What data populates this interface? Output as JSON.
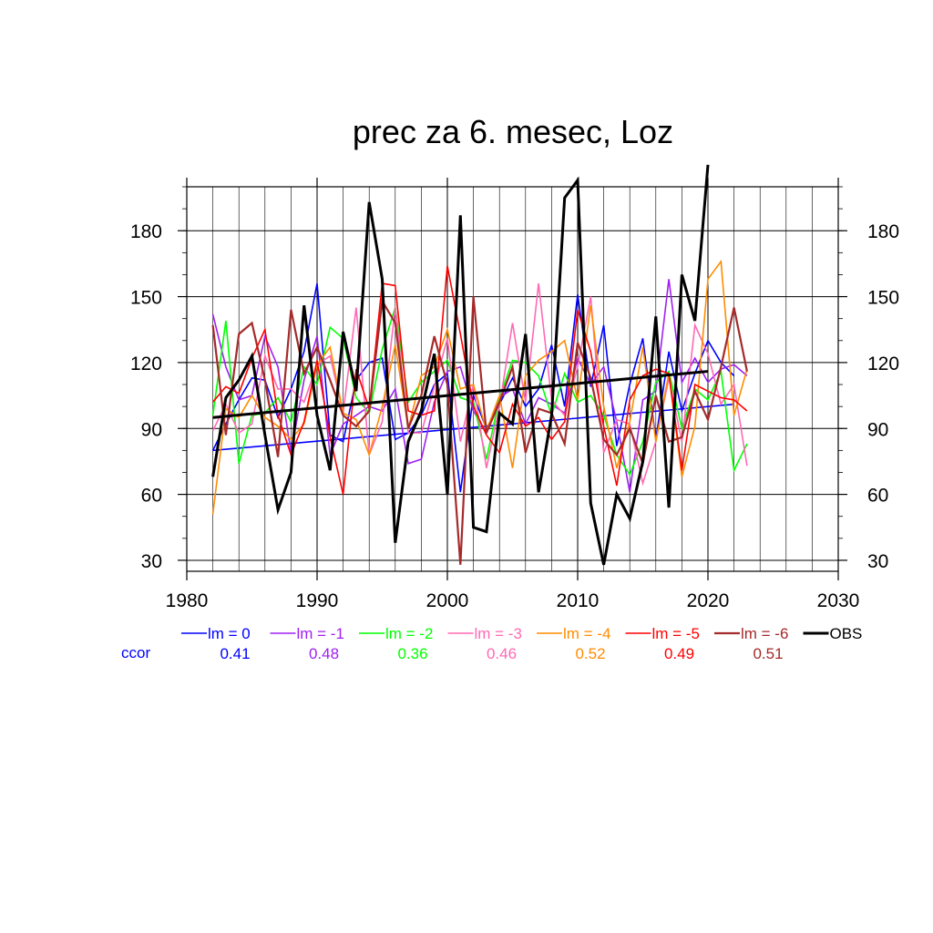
{
  "chart_data": {
    "type": "line",
    "title": "prec za 6. mesec, Loz",
    "xlabel": "",
    "ylabel": "",
    "xlim": [
      1980,
      2030
    ],
    "ylim": [
      25,
      200
    ],
    "x_ticks": [
      1980,
      1990,
      2000,
      2010,
      2020,
      2030
    ],
    "y_ticks": [
      30,
      60,
      90,
      120,
      150,
      180
    ],
    "grid": true,
    "legend_position": "bottom",
    "ccor_label": "ccor",
    "series": [
      {
        "name": "lm = 0",
        "color": "#0000ff",
        "width": 1.6,
        "ccor": "0.41",
        "x_start": 1982,
        "values": [
          80,
          92,
          103,
          113,
          112,
          95,
          108,
          125,
          156,
          87,
          84,
          112,
          120,
          122,
          85,
          88,
          96,
          110,
          115,
          61,
          105,
          90,
          101,
          113,
          100,
          108,
          128,
          100,
          151,
          109,
          137,
          82,
          110,
          131,
          85,
          125,
          98,
          115,
          130,
          120,
          114
        ],
        "trend": [
          80,
          101
        ]
      },
      {
        "name": "lm = -1",
        "color": "#a020f0",
        "width": 1.6,
        "ccor": "0.48",
        "x_start": 1982,
        "values": [
          142,
          118,
          103,
          105,
          132,
          118,
          79,
          112,
          132,
          78,
          92,
          96,
          100,
          98,
          108,
          74,
          76,
          102,
          116,
          118,
          98,
          88,
          104,
          108,
          92,
          104,
          101,
          97,
          122,
          110,
          118,
          93,
          61,
          103,
          107,
          158,
          111,
          122,
          111,
          117,
          119,
          114
        ]
      },
      {
        "name": "lm = -2",
        "color": "#00ff00",
        "width": 1.6,
        "ccor": "0.36",
        "x_start": 1982,
        "values": [
          96,
          139,
          74,
          96,
          97,
          104,
          93,
          118,
          110,
          136,
          131,
          104,
          97,
          126,
          145,
          102,
          111,
          116,
          121,
          104,
          102,
          76,
          104,
          121,
          120,
          114,
          96,
          115,
          102,
          105,
          96,
          78,
          69,
          84,
          111,
          116,
          90,
          108,
          103,
          116,
          71,
          83
        ]
      },
      {
        "name": "lm = -3",
        "color": "#ff69b4",
        "width": 1.6,
        "ccor": "0.46",
        "x_start": 1982,
        "values": [
          89,
          101,
          88,
          92,
          123,
          108,
          108,
          102,
          119,
          123,
          97,
          145,
          78,
          93,
          145,
          88,
          88,
          109,
          131,
          84,
          110,
          72,
          100,
          138,
          102,
          156,
          103,
          96,
          118,
          150,
          79,
          94,
          92,
          65,
          84,
          113,
          84,
          137,
          124,
          101,
          110,
          73
        ]
      },
      {
        "name": "lm = -4",
        "color": "#ff8c00",
        "width": 1.6,
        "ccor": "0.52",
        "x_start": 1982,
        "values": [
          51,
          99,
          95,
          105,
          95,
          91,
          85,
          92,
          119,
          127,
          97,
          94,
          78,
          100,
          128,
          90,
          114,
          118,
          135,
          108,
          110,
          89,
          105,
          72,
          114,
          121,
          125,
          130,
          103,
          146,
          100,
          72,
          93,
          127,
          84,
          115,
          68,
          91,
          158,
          166,
          96,
          117
        ]
      },
      {
        "name": "lm = -5",
        "color": "#ff0000",
        "width": 1.6,
        "ccor": "0.49",
        "x_start": 1982,
        "values": [
          102,
          109,
          106,
          122,
          135,
          96,
          78,
          93,
          121,
          86,
          60,
          117,
          99,
          156,
          155,
          98,
          96,
          98,
          164,
          133,
          100,
          87,
          79,
          101,
          91,
          95,
          85,
          93,
          144,
          125,
          91,
          64,
          103,
          114,
          117,
          115,
          71,
          110,
          107,
          104,
          103,
          98
        ]
      },
      {
        "name": "lm = -6",
        "color": "#a52a2a",
        "width": 2.2,
        "ccor": "0.51",
        "x_start": 1982,
        "values": [
          137,
          87,
          133,
          138,
          112,
          77,
          144,
          115,
          127,
          112,
          96,
          91,
          98,
          148,
          138,
          90,
          105,
          132,
          110,
          28,
          150,
          88,
          102,
          118,
          79,
          99,
          97,
          83,
          129,
          113,
          85,
          78,
          90,
          74,
          105,
          84,
          86,
          107,
          94,
          118,
          145,
          116
        ]
      },
      {
        "name": "OBS",
        "color": "#000000",
        "width": 3,
        "ccor": "",
        "x_start": 1982,
        "values": [
          68,
          104,
          112,
          123,
          87,
          53,
          70,
          146,
          96,
          71,
          134,
          107,
          193,
          158,
          38,
          84,
          98,
          124,
          60,
          187,
          45,
          43,
          97,
          92,
          133,
          61,
          96,
          195,
          203,
          56,
          28,
          60,
          49,
          75,
          141,
          54,
          160,
          139,
          210
        ],
        "trend": [
          95,
          116
        ]
      }
    ]
  }
}
